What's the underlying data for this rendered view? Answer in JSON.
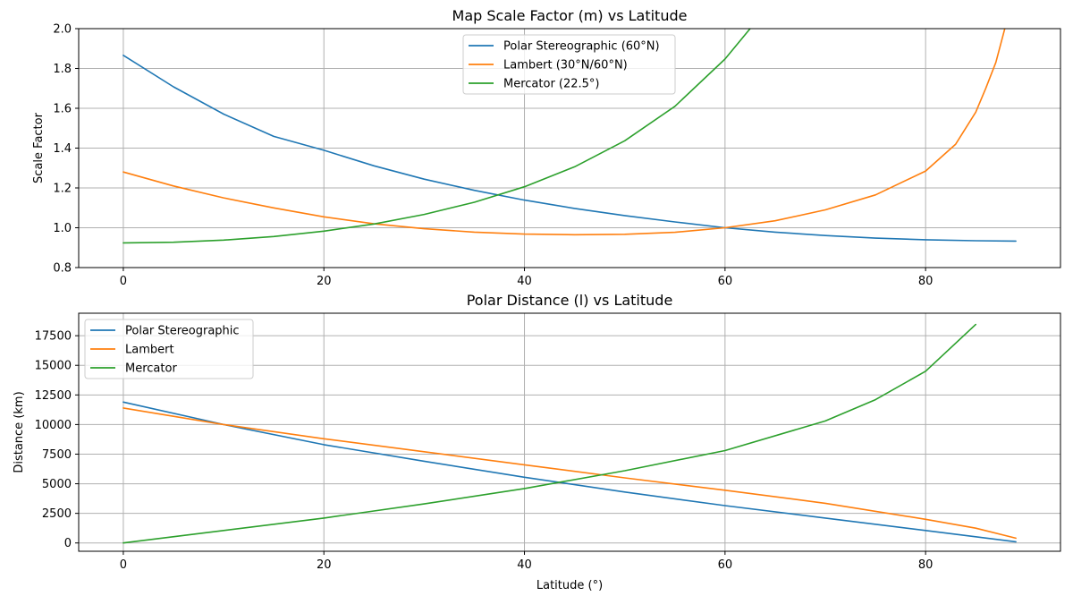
{
  "chart_data": [
    {
      "type": "line",
      "title": "Map Scale Factor (m) vs Latitude",
      "xlabel": "",
      "ylabel": "Scale Factor",
      "xlim": [
        -4.45,
        93.45
      ],
      "ylim": [
        0.8,
        2.0
      ],
      "xticks": [
        0,
        20,
        40,
        60,
        80
      ],
      "yticks": [
        0.8,
        1.0,
        1.2,
        1.4,
        1.6,
        1.8,
        2.0
      ],
      "ytick_decimals": 1,
      "grid": true,
      "legend_placement": "upper-center",
      "series": [
        {
          "name": "Polar Stereographic (60°N)",
          "color": "#1f77b4",
          "x": [
            0,
            5,
            10,
            15,
            20,
            25,
            30,
            35,
            40,
            45,
            50,
            55,
            60,
            65,
            70,
            75,
            80,
            85,
            89
          ],
          "y": [
            1.866,
            1.708,
            1.571,
            1.459,
            1.389,
            1.311,
            1.244,
            1.188,
            1.139,
            1.097,
            1.061,
            1.029,
            1.0,
            0.978,
            0.961,
            0.948,
            0.94,
            0.935,
            0.933
          ]
        },
        {
          "name": "Lambert (30°N/60°N)",
          "color": "#ff7f0e",
          "x": [
            0,
            5,
            10,
            15,
            20,
            25,
            30,
            35,
            40,
            45,
            50,
            55,
            60,
            65,
            70,
            75,
            80,
            83,
            85,
            86,
            87,
            88
          ],
          "y": [
            1.28,
            1.21,
            1.15,
            1.1,
            1.055,
            1.02,
            0.995,
            0.978,
            0.968,
            0.965,
            0.967,
            0.977,
            1.0,
            1.035,
            1.09,
            1.165,
            1.285,
            1.42,
            1.58,
            1.7,
            1.83,
            2.02
          ]
        },
        {
          "name": "Mercator (22.5°)",
          "color": "#2ca02c",
          "x": [
            0,
            5,
            10,
            15,
            20,
            25,
            30,
            35,
            40,
            45,
            50,
            55,
            60,
            62.5
          ],
          "y": [
            0.924,
            0.927,
            0.938,
            0.956,
            0.983,
            1.019,
            1.067,
            1.128,
            1.206,
            1.306,
            1.437,
            1.61,
            1.847,
            2.0
          ]
        }
      ]
    },
    {
      "type": "line",
      "title": "Polar Distance (l) vs Latitude",
      "xlabel": "Latitude (°)",
      "ylabel": "Distance (km)",
      "xlim": [
        -4.45,
        93.45
      ],
      "ylim": [
        -700,
        19400
      ],
      "xticks": [
        0,
        20,
        40,
        60,
        80
      ],
      "yticks": [
        0,
        2500,
        5000,
        7500,
        10000,
        12500,
        15000,
        17500
      ],
      "ytick_decimals": 0,
      "grid": true,
      "legend_placement": "upper-left",
      "series": [
        {
          "name": "Polar Stereographic",
          "color": "#1f77b4",
          "x": [
            0,
            10,
            20,
            30,
            40,
            50,
            60,
            70,
            80,
            89
          ],
          "y": [
            11900,
            10000,
            8300,
            6900,
            5550,
            4300,
            3150,
            2100,
            1050,
            100
          ]
        },
        {
          "name": "Lambert",
          "color": "#ff7f0e",
          "x": [
            0,
            10,
            20,
            30,
            40,
            50,
            60,
            70,
            80,
            85,
            89
          ],
          "y": [
            11400,
            10000,
            8800,
            7700,
            6600,
            5500,
            4450,
            3350,
            2000,
            1250,
            400
          ]
        },
        {
          "name": "Mercator",
          "color": "#2ca02c",
          "x": [
            0,
            10,
            20,
            30,
            40,
            50,
            60,
            70,
            75,
            80,
            85
          ],
          "y": [
            0,
            1050,
            2100,
            3300,
            4600,
            6100,
            7800,
            10300,
            12100,
            14500,
            18450
          ]
        }
      ]
    }
  ]
}
